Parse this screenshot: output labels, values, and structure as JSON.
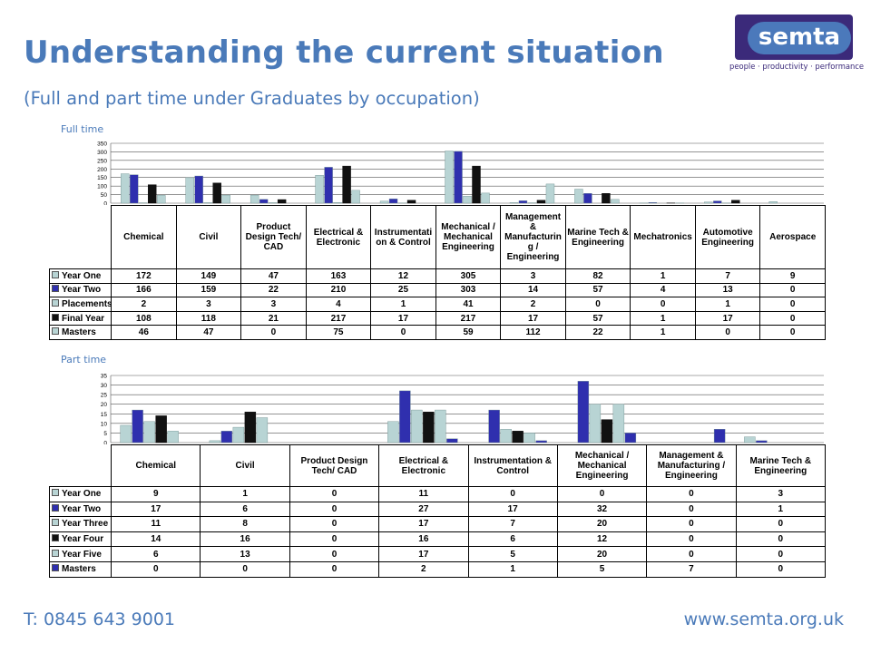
{
  "header": {
    "title": "Understanding the current situation",
    "subtitle": "(Full and part time under Graduates by occupation)"
  },
  "logo": {
    "name": "semta",
    "tagline": "people · productivity · performance"
  },
  "colors": {
    "title": "#4a7ab9",
    "logo_bg": "#3b2a7a",
    "logo_pill": "#4b79bb",
    "series_light": "#b8d4d4",
    "series_blue": "#2f2fae",
    "series_black": "#111111"
  },
  "footer": {
    "phone": "T: 0845 643 9001",
    "website": "www.semta.org.uk"
  },
  "chart_data": [
    {
      "type": "bar",
      "label": "Full time",
      "categories": [
        "Chemical",
        "Civil",
        "Product Design Tech/ CAD",
        "Electrical & Electronic",
        "Instrumentation & Control",
        "Mechanical / Mechanical Engineering",
        "Management & Manufacturing / Engineering",
        "Marine Tech & Engineering",
        "Mechatronics",
        "Automotive Engineering",
        "Aerospace"
      ],
      "category_labels": [
        "Chemical",
        "Civil",
        "Product Design Tech/ CAD",
        "Electrical & Electronic",
        "Instrumentati on & Control",
        "Mechanical / Mechanical Engineering",
        "Management & Manufacturin g / Engineering",
        "Marine Tech & Engineering",
        "Mechatronics",
        "Automotive Engineering",
        "Aerospace"
      ],
      "ylim": [
        0,
        350
      ],
      "yticks": [
        0,
        50,
        100,
        150,
        200,
        250,
        300,
        350
      ],
      "series": [
        {
          "name": "Year One",
          "color": "#b8d4d4",
          "values": [
            172,
            149,
            47,
            163,
            12,
            305,
            3,
            82,
            1,
            7,
            9
          ]
        },
        {
          "name": "Year Two",
          "color": "#2f2fae",
          "values": [
            166,
            159,
            22,
            210,
            25,
            303,
            14,
            57,
            4,
            13,
            0
          ]
        },
        {
          "name": "Placements",
          "color": "#b8d4d4",
          "values": [
            2,
            3,
            3,
            4,
            1,
            41,
            2,
            0,
            0,
            1,
            0
          ]
        },
        {
          "name": "Final Year",
          "color": "#111111",
          "values": [
            108,
            118,
            21,
            217,
            17,
            217,
            17,
            57,
            1,
            17,
            0
          ]
        },
        {
          "name": "Masters",
          "color": "#b8d4d4",
          "values": [
            46,
            47,
            0,
            75,
            0,
            59,
            112,
            22,
            1,
            0,
            0
          ]
        }
      ]
    },
    {
      "type": "bar",
      "label": "Part time",
      "categories": [
        "Chemical",
        "Civil",
        "Product Design Tech/ CAD",
        "Electrical & Electronic",
        "Instrumentation & Control",
        "Mechanical / Mechanical Engineering",
        "Management & Manufacturing / Engineering",
        "Marine Tech & Engineering"
      ],
      "category_labels": [
        "Chemical",
        "Civil",
        "Product Design Tech/ CAD",
        "Electrical & Electronic",
        "Instrumentation & Control",
        "Mechanical / Mechanical Engineering",
        "Management & Manufacturing / Engineering",
        "Marine Tech & Engineering"
      ],
      "ylim": [
        0,
        35
      ],
      "yticks": [
        0,
        5,
        10,
        15,
        20,
        25,
        30,
        35
      ],
      "series": [
        {
          "name": "Year One",
          "color": "#b8d4d4",
          "values": [
            9,
            1,
            0,
            11,
            0,
            0,
            0,
            3
          ]
        },
        {
          "name": "Year Two",
          "color": "#2f2fae",
          "values": [
            17,
            6,
            0,
            27,
            17,
            32,
            0,
            1
          ]
        },
        {
          "name": "Year Three",
          "color": "#b8d4d4",
          "values": [
            11,
            8,
            0,
            17,
            7,
            20,
            0,
            0
          ]
        },
        {
          "name": "Year Four",
          "color": "#111111",
          "values": [
            14,
            16,
            0,
            16,
            6,
            12,
            0,
            0
          ]
        },
        {
          "name": "Year Five",
          "color": "#b8d4d4",
          "values": [
            6,
            13,
            0,
            17,
            5,
            20,
            0,
            0
          ]
        },
        {
          "name": "Masters",
          "color": "#2f2fae",
          "values": [
            0,
            0,
            0,
            2,
            1,
            5,
            7,
            0
          ]
        }
      ]
    }
  ]
}
